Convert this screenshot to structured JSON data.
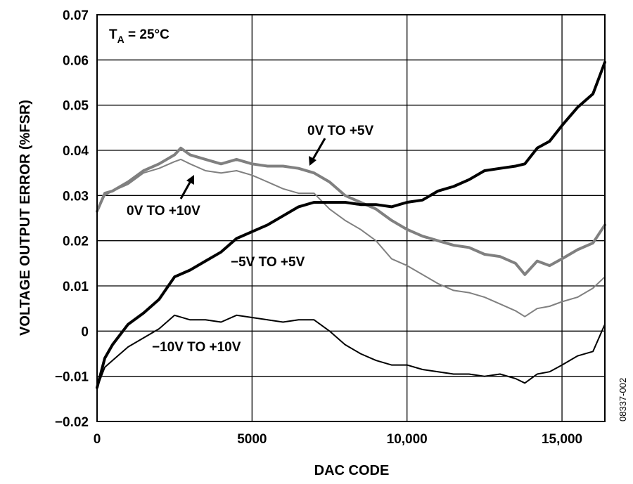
{
  "chart_data": {
    "type": "line",
    "xlabel": "DAC CODE",
    "ylabel": "VOLTAGE OUTPUT ERROR (%FSR)",
    "xlim": [
      0,
      16383
    ],
    "ylim": [
      -0.02,
      0.07
    ],
    "x_ticks": [
      {
        "value": 0,
        "label": "0"
      },
      {
        "value": 5000,
        "label": "5000"
      },
      {
        "value": 10000,
        "label": "10,000"
      },
      {
        "value": 15000,
        "label": "15,000"
      }
    ],
    "y_ticks": [
      {
        "value": 0.07,
        "label": "0.07"
      },
      {
        "value": 0.06,
        "label": "0.06"
      },
      {
        "value": 0.05,
        "label": "0.05"
      },
      {
        "value": 0.04,
        "label": "0.04"
      },
      {
        "value": 0.03,
        "label": "0.03"
      },
      {
        "value": 0.02,
        "label": "0.02"
      },
      {
        "value": 0.01,
        "label": "0.01"
      },
      {
        "value": 0,
        "label": "0"
      },
      {
        "value": -0.01,
        "label": "−0.01"
      },
      {
        "value": -0.02,
        "label": "−0.02"
      }
    ],
    "grid": true,
    "condition_label": {
      "main": "T",
      "sub": "A",
      "rest": " = 25°C"
    },
    "figure_id": "08337-002",
    "series": [
      {
        "name": "0V TO +5V",
        "color": "#808080",
        "width": 4,
        "x": [
          0,
          250,
          500,
          1000,
          1500,
          2000,
          2500,
          2700,
          3000,
          3500,
          4000,
          4500,
          5000,
          5500,
          6000,
          6500,
          7000,
          7500,
          8000,
          8500,
          9000,
          9500,
          10000,
          10500,
          11000,
          11500,
          12000,
          12500,
          13000,
          13500,
          13800,
          14200,
          14600,
          15000,
          15500,
          16000,
          16383
        ],
        "y": [
          0.0265,
          0.0305,
          0.031,
          0.033,
          0.0355,
          0.037,
          0.039,
          0.0405,
          0.039,
          0.038,
          0.037,
          0.038,
          0.037,
          0.0365,
          0.0365,
          0.036,
          0.035,
          0.033,
          0.03,
          0.0285,
          0.027,
          0.0245,
          0.0225,
          0.021,
          0.02,
          0.019,
          0.0185,
          0.017,
          0.0165,
          0.015,
          0.0125,
          0.0155,
          0.0145,
          0.016,
          0.018,
          0.0195,
          0.0235
        ]
      },
      {
        "name": "0V TO +10V",
        "color": "#808080",
        "width": 2,
        "x": [
          0,
          250,
          500,
          1000,
          1500,
          2000,
          2500,
          2700,
          3000,
          3500,
          4000,
          4500,
          5000,
          5500,
          6000,
          6500,
          7000,
          7500,
          8000,
          8500,
          9000,
          9500,
          10000,
          10500,
          11000,
          11500,
          12000,
          12500,
          13000,
          13500,
          13800,
          14200,
          14600,
          15000,
          15500,
          16000,
          16383
        ],
        "y": [
          0.0265,
          0.03,
          0.031,
          0.0325,
          0.035,
          0.036,
          0.0375,
          0.038,
          0.037,
          0.0355,
          0.035,
          0.0355,
          0.0345,
          0.033,
          0.0315,
          0.0305,
          0.0305,
          0.027,
          0.0245,
          0.0225,
          0.02,
          0.016,
          0.0145,
          0.0125,
          0.0105,
          0.009,
          0.0085,
          0.0075,
          0.006,
          0.0045,
          0.0032,
          0.005,
          0.0055,
          0.0065,
          0.0075,
          0.0095,
          0.012
        ]
      },
      {
        "name": "−5V TO +5V",
        "color": "#000000",
        "width": 4,
        "x": [
          0,
          250,
          500,
          1000,
          1500,
          2000,
          2500,
          3000,
          3500,
          4000,
          4500,
          5000,
          5500,
          6000,
          6500,
          7000,
          7500,
          8000,
          8500,
          9000,
          9500,
          10000,
          10500,
          11000,
          11500,
          12000,
          12500,
          13000,
          13500,
          13800,
          14200,
          14600,
          15000,
          15500,
          16000,
          16383
        ],
        "y": [
          -0.0125,
          -0.006,
          -0.003,
          0.0015,
          0.004,
          0.007,
          0.012,
          0.0135,
          0.0155,
          0.0175,
          0.0205,
          0.022,
          0.0235,
          0.0255,
          0.0275,
          0.0285,
          0.0285,
          0.0285,
          0.028,
          0.028,
          0.0275,
          0.0285,
          0.029,
          0.031,
          0.032,
          0.0335,
          0.0355,
          0.036,
          0.0365,
          0.037,
          0.0405,
          0.042,
          0.0455,
          0.0495,
          0.0525,
          0.0595
        ]
      },
      {
        "name": "−10V TO +10V",
        "color": "#000000",
        "width": 2,
        "x": [
          0,
          250,
          500,
          1000,
          1500,
          2000,
          2500,
          3000,
          3500,
          4000,
          4500,
          5000,
          5500,
          6000,
          6500,
          7000,
          7500,
          8000,
          8500,
          9000,
          9500,
          10000,
          10500,
          11000,
          11500,
          12000,
          12500,
          13000,
          13500,
          13800,
          14200,
          14600,
          15000,
          15500,
          16000,
          16383
        ],
        "y": [
          -0.0125,
          -0.008,
          -0.0065,
          -0.0035,
          -0.0015,
          0.0005,
          0.0035,
          0.0025,
          0.0025,
          0.002,
          0.0035,
          0.003,
          0.0025,
          0.002,
          0.0025,
          0.0025,
          0.0,
          -0.003,
          -0.005,
          -0.0065,
          -0.0075,
          -0.0075,
          -0.0085,
          -0.009,
          -0.0095,
          -0.0095,
          -0.01,
          -0.0095,
          -0.0105,
          -0.0115,
          -0.0095,
          -0.009,
          -0.0075,
          -0.0055,
          -0.0045,
          0.0015
        ]
      }
    ],
    "annotations": [
      {
        "text": "0V TO +5V",
        "series": "0V TO +5V",
        "arrow": true
      },
      {
        "text": "0V TO +10V",
        "series": "0V TO +10V",
        "arrow": true
      },
      {
        "text": "−5V TO +5V",
        "series": "−5V TO +5V",
        "arrow": false
      },
      {
        "text": "−10V TO +10V",
        "series": "−10V TO +10V",
        "arrow": false
      }
    ]
  }
}
